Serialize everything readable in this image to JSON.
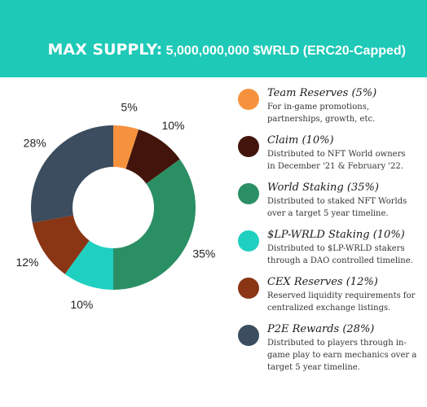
{
  "header": {
    "title_main": "MAX SUPPLY:",
    "title_detail": "5,000,000,000 $WRLD (ERC20-Capped)"
  },
  "chart_data": {
    "type": "pie",
    "donut": true,
    "categories": [
      "Team Reserves",
      "Claim",
      "World Staking",
      "$LP-WRLD Staking",
      "CEX Reserves",
      "P2E Rewards"
    ],
    "values": [
      5,
      10,
      35,
      10,
      12,
      28
    ],
    "value_labels": [
      "5%",
      "10%",
      "35%",
      "10%",
      "12%",
      "28%"
    ],
    "colors": [
      "#f6923e",
      "#43140b",
      "#2b8f64",
      "#1fd0c0",
      "#8a3514",
      "#3b4d5e"
    ],
    "legend_placement": "right"
  },
  "legend": {
    "items": [
      {
        "title": "Team Reserves (5%)",
        "desc": [
          "For in-game promotions,",
          "partnerships, growth, etc."
        ]
      },
      {
        "title": "Claim (10%)",
        "desc": [
          "Distributed to NFT World owners",
          "in December '21 & February '22."
        ]
      },
      {
        "title": "World Staking (35%)",
        "desc": [
          "Distributed to staked NFT Worlds",
          "over a target 5 year timeline."
        ]
      },
      {
        "title": "$LP-WRLD Staking (10%)",
        "desc": [
          "Distributed to $LP-WRLD stakers",
          "through a DAO controlled timeline."
        ]
      },
      {
        "title": "CEX Reserves (12%)",
        "desc": [
          "Reserved liquidity requirements for",
          "centralized exchange listings."
        ]
      },
      {
        "title": "P2E Rewards (28%)",
        "desc": [
          "Distributed to players through in-",
          "game play to earn mechanics over a",
          "target 5 year timeline."
        ]
      }
    ]
  }
}
